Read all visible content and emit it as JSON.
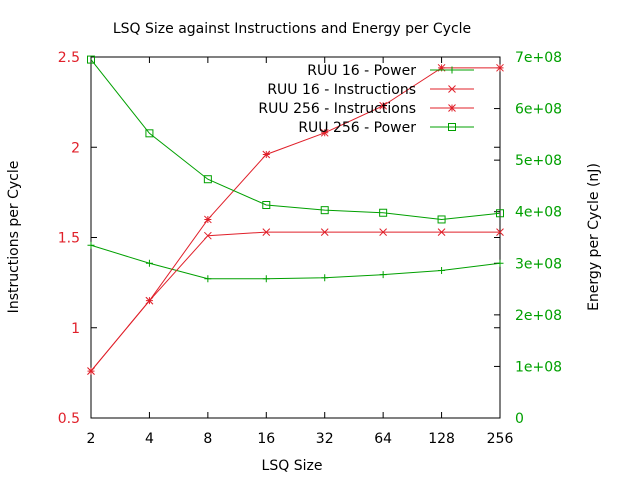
{
  "chart_data": {
    "type": "line",
    "title": "LSQ Size against Instructions and Energy per Cycle",
    "xlabel": "LSQ Size",
    "ylabel_left": "Instructions per Cycle",
    "ylabel_right": "Energy per Cycle (nJ)",
    "categories": [
      "2",
      "4",
      "8",
      "16",
      "32",
      "64",
      "128",
      "256"
    ],
    "y_left": {
      "range": [
        0.5,
        2.5
      ],
      "ticks": [
        "0.5",
        "1",
        "1.5",
        "2",
        "2.5"
      ],
      "tick_values": [
        0.5,
        1,
        1.5,
        2,
        2.5
      ],
      "color": "#e0202a"
    },
    "y_right": {
      "range": [
        0,
        700000000
      ],
      "ticks": [
        "0",
        "1e+08",
        "2e+08",
        "3e+08",
        "4e+08",
        "5e+08",
        "6e+08",
        "7e+08"
      ],
      "tick_values": [
        0,
        100000000,
        200000000,
        300000000,
        400000000,
        500000000,
        600000000,
        700000000
      ],
      "color": "#00a000"
    },
    "grid": false,
    "legend_position": "top-right",
    "series": [
      {
        "name": "RUU 16 - Power",
        "axis": "right",
        "color": "#00a000",
        "marker": "plus",
        "values": [
          335000000,
          300000000,
          270000000,
          270000000,
          272000000,
          278000000,
          286000000,
          300000000
        ]
      },
      {
        "name": "RUU 16 - Instructions",
        "axis": "left",
        "color": "#e0202a",
        "marker": "x",
        "values": [
          0.76,
          1.15,
          1.51,
          1.53,
          1.53,
          1.53,
          1.53,
          1.53
        ]
      },
      {
        "name": "RUU 256 - Instructions",
        "axis": "left",
        "color": "#e0202a",
        "marker": "star",
        "values": [
          0.76,
          1.15,
          1.6,
          1.96,
          2.08,
          2.23,
          2.44,
          2.44
        ]
      },
      {
        "name": "RUU 256 - Power",
        "axis": "right",
        "color": "#00a000",
        "marker": "square",
        "values": [
          695000000,
          552000000,
          463000000,
          413000000,
          403000000,
          398000000,
          385000000,
          397000000
        ]
      }
    ]
  }
}
